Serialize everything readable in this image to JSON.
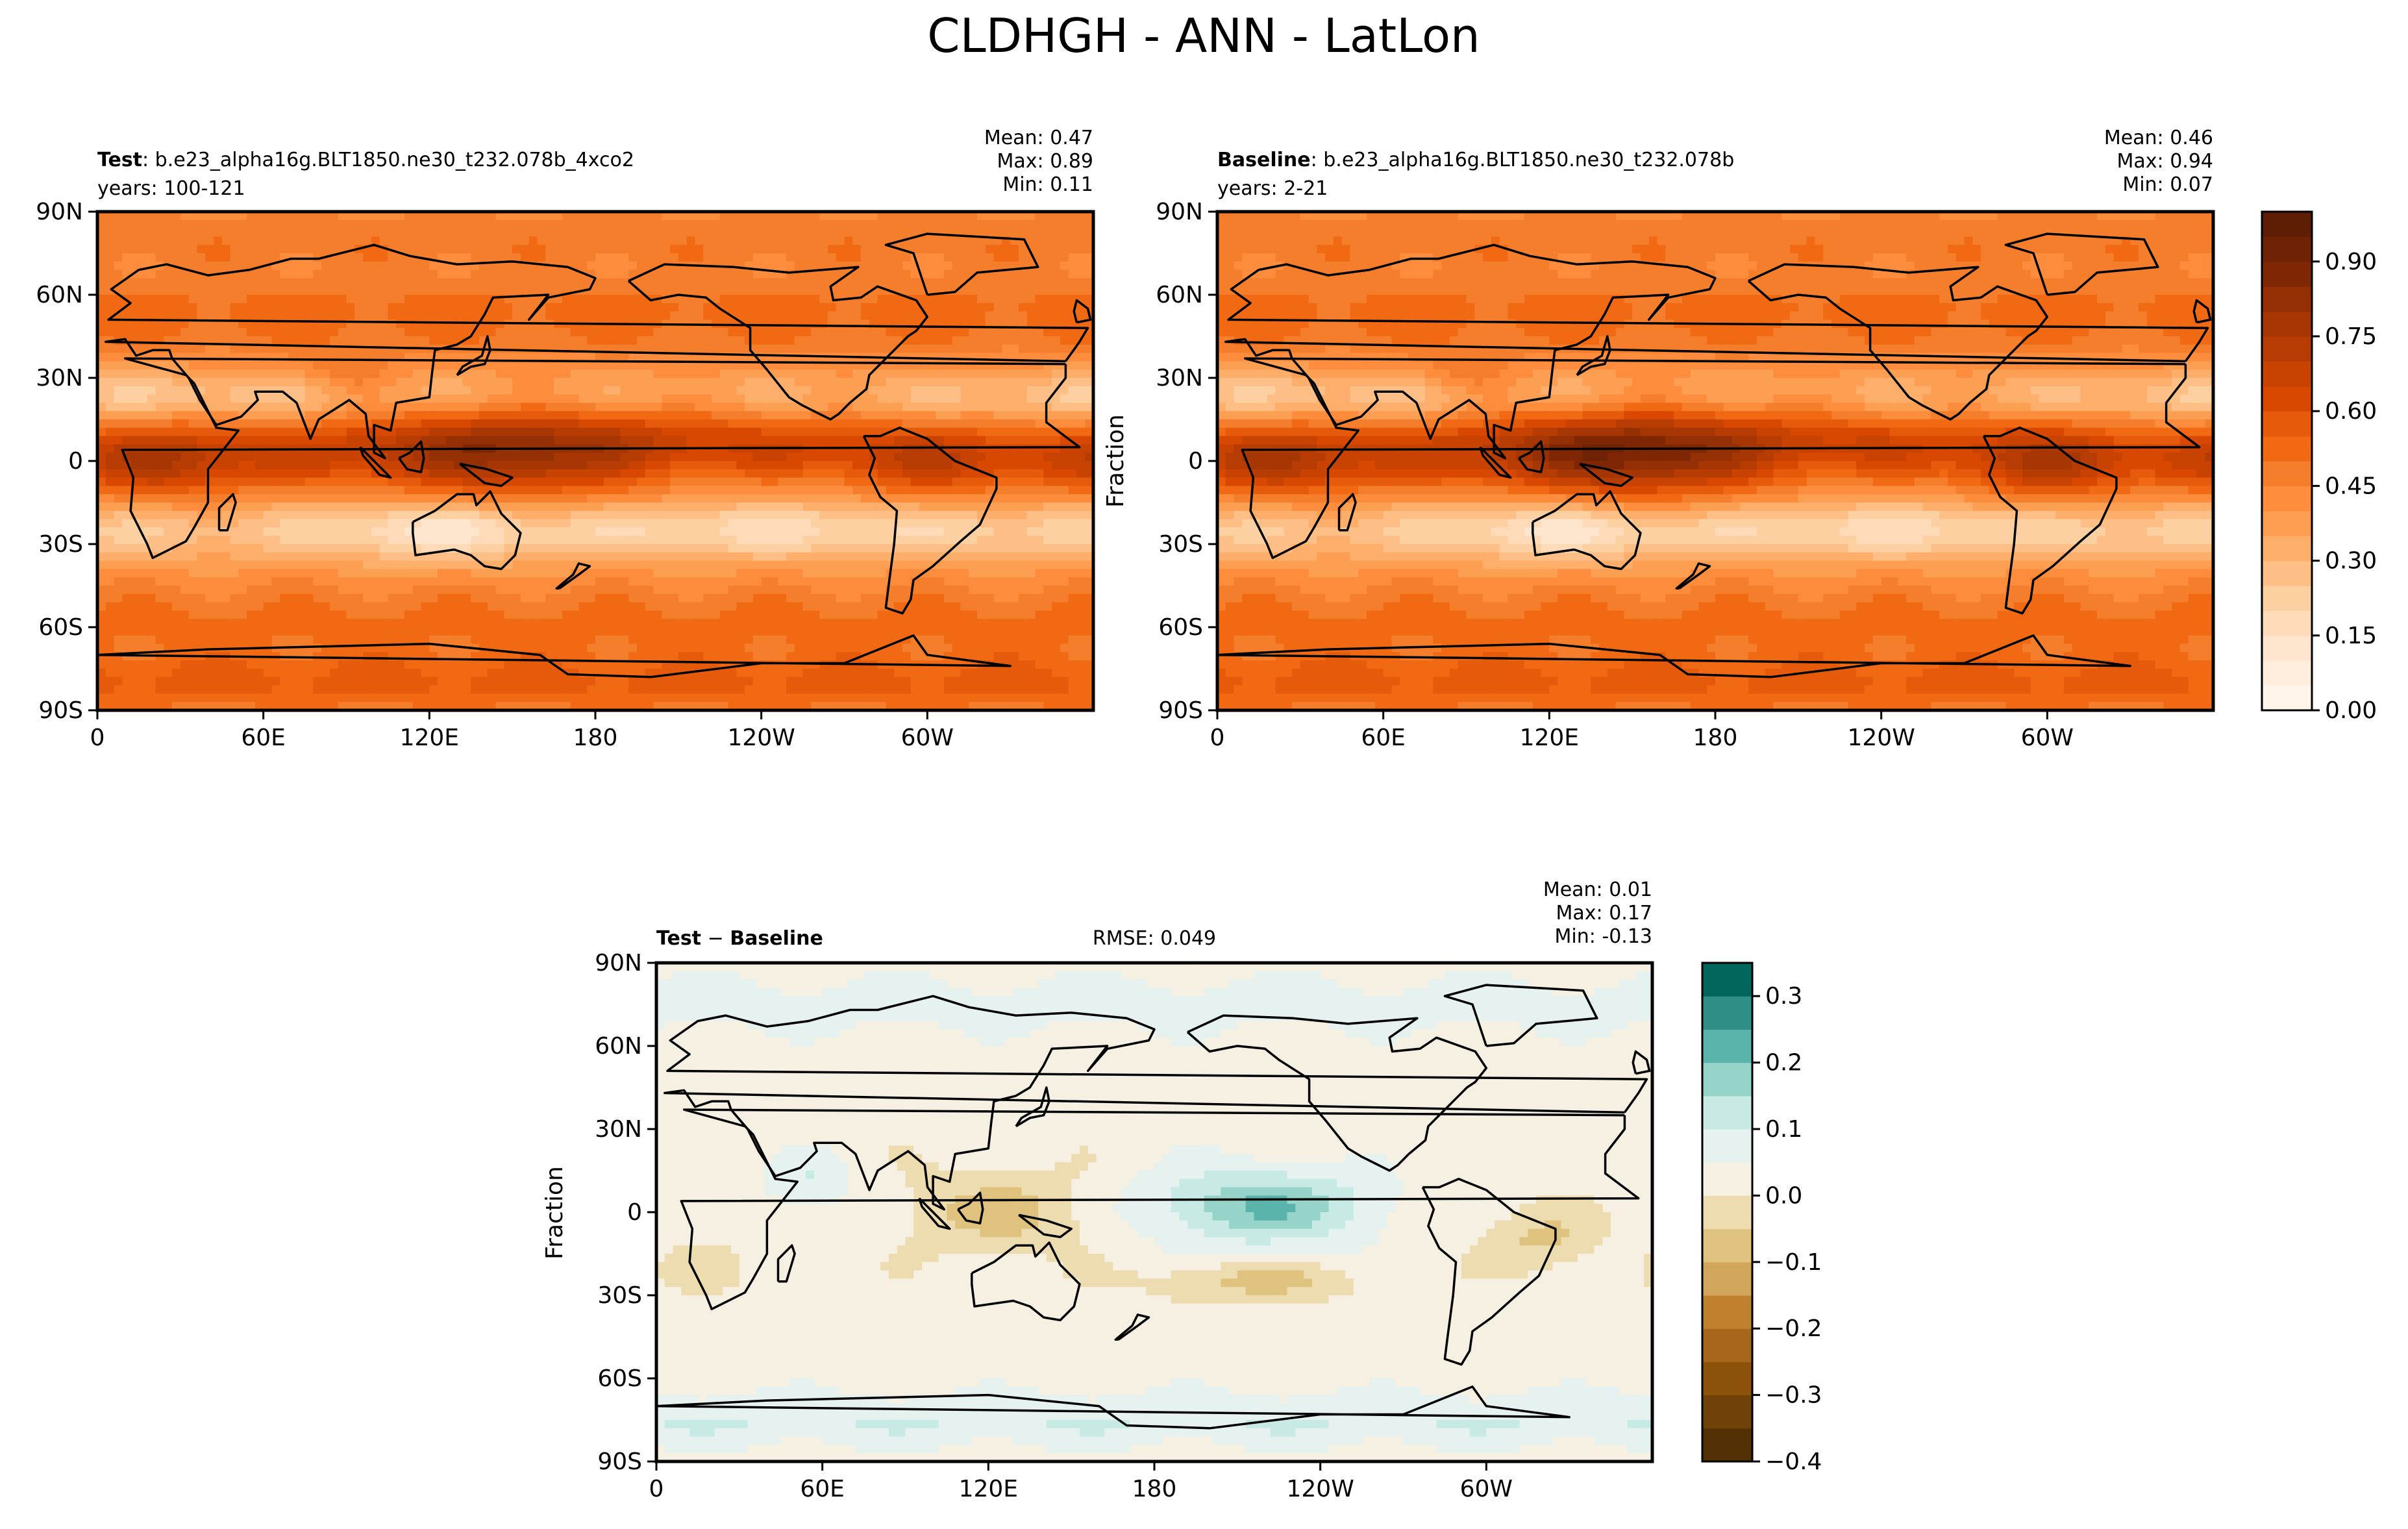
{
  "figure": {
    "title": "CLDHGH - ANN - LatLon"
  },
  "lat_ticks": [
    "90N",
    "60N",
    "30N",
    "0",
    "30S",
    "60S",
    "90S"
  ],
  "lon_ticks": [
    "0",
    "60E",
    "120E",
    "180",
    "120W",
    "60W"
  ],
  "panels": {
    "test": {
      "label_bold": "Test",
      "label_rest": ": b.e23_alpha16g.BLT1850.ne30_t232.078b_4xco2",
      "years": "years: 100-121",
      "stats": {
        "mean": "Mean:  0.47",
        "max": "Max:  0.89",
        "min": "Min:  0.11"
      }
    },
    "baseline": {
      "label_bold": "Baseline",
      "label_rest": ": b.e23_alpha16g.BLT1850.ne30_t232.078b",
      "years": "years: 2-21",
      "ylabel": "Fraction",
      "stats": {
        "mean": "Mean:  0.46",
        "max": "Max:  0.94",
        "min": "Min:  0.07"
      }
    },
    "diff": {
      "label": "Test − Baseline",
      "label_bold": "Test",
      "label_mid": " − ",
      "label_bold2": "Baseline",
      "rmse": "RMSE: 0.049",
      "ylabel": "Fraction",
      "stats": {
        "mean": "Mean:  0.01",
        "max": "Max:  0.17",
        "min": "Min: -0.13"
      }
    }
  },
  "colorbars": {
    "main": {
      "colormap": "Oranges",
      "ticks": [
        "0.00",
        "0.15",
        "0.30",
        "0.45",
        "0.60",
        "0.75",
        "0.90"
      ],
      "levels": [
        0.0,
        0.05,
        0.1,
        0.15,
        0.2,
        0.25,
        0.3,
        0.35,
        0.4,
        0.45,
        0.5,
        0.55,
        0.6,
        0.65,
        0.7,
        0.75,
        0.8,
        0.85,
        0.9,
        0.95,
        1.0
      ],
      "colors": [
        "#fff5eb",
        "#ffeedd",
        "#fee6ce",
        "#fddbb8",
        "#fdd0a2",
        "#fdbf86",
        "#fdae6b",
        "#fd9f53",
        "#fd8d3c",
        "#f57e2c",
        "#f16913",
        "#e65b0b",
        "#d94801",
        "#c84202",
        "#b73c03",
        "#a63603",
        "#943004",
        "#7f2704",
        "#6f2204",
        "#5e1e04"
      ]
    },
    "diff": {
      "colormap": "BrBG",
      "ticks": [
        "0.3",
        "0.2",
        "0.1",
        "0.0",
        "−0.1",
        "−0.2",
        "−0.3",
        "−0.4"
      ],
      "levels": [
        -0.4,
        -0.35,
        -0.3,
        -0.25,
        -0.2,
        -0.15,
        -0.1,
        -0.05,
        0.0,
        0.05,
        0.1,
        0.15,
        0.2,
        0.25,
        0.3,
        0.35
      ],
      "colors": [
        "#543005",
        "#6f420a",
        "#8c510a",
        "#a6661c",
        "#bf812d",
        "#d1a55b",
        "#dfc27d",
        "#ecdcb0",
        "#f5f0e1",
        "#e5f2f0",
        "#c7eae5",
        "#96d4ca",
        "#5ab4ac",
        "#2f8f87",
        "#01665e",
        "#004a3f"
      ]
    }
  },
  "chart_data": [
    {
      "type": "heatmap",
      "title": "CLDHGH - ANN - LatLon",
      "panel": "Test",
      "case": "b.e23_alpha16g.BLT1850.ne30_t232.078b_4xco2",
      "years": "100-121",
      "mean": 0.47,
      "max": 0.89,
      "min": 0.11,
      "x": "longitude 0 to 360",
      "y": "latitude -90 to 90",
      "clim": [
        0.0,
        1.0
      ],
      "fields": {
        "itcz_peak": 0.85,
        "subtropic_min": 0.2,
        "midlat": 0.5,
        "southern_ocean": 0.55,
        "antarctic": 0.62
      }
    },
    {
      "type": "heatmap",
      "panel": "Baseline",
      "case": "b.e23_alpha16g.BLT1850.ne30_t232.078b",
      "years": "2-21",
      "ylabel": "Fraction",
      "mean": 0.46,
      "max": 0.94,
      "min": 0.07,
      "clim": [
        0.0,
        1.0
      ],
      "fields": {
        "itcz_peak": 0.92,
        "subtropic_min": 0.18,
        "midlat": 0.48,
        "southern_ocean": 0.52,
        "antarctic": 0.58
      }
    },
    {
      "type": "heatmap",
      "panel": "Test − Baseline",
      "rmse": 0.049,
      "ylabel": "Fraction",
      "mean": 0.01,
      "max": 0.17,
      "min": -0.13,
      "clim": [
        -0.4,
        0.35
      ]
    }
  ]
}
